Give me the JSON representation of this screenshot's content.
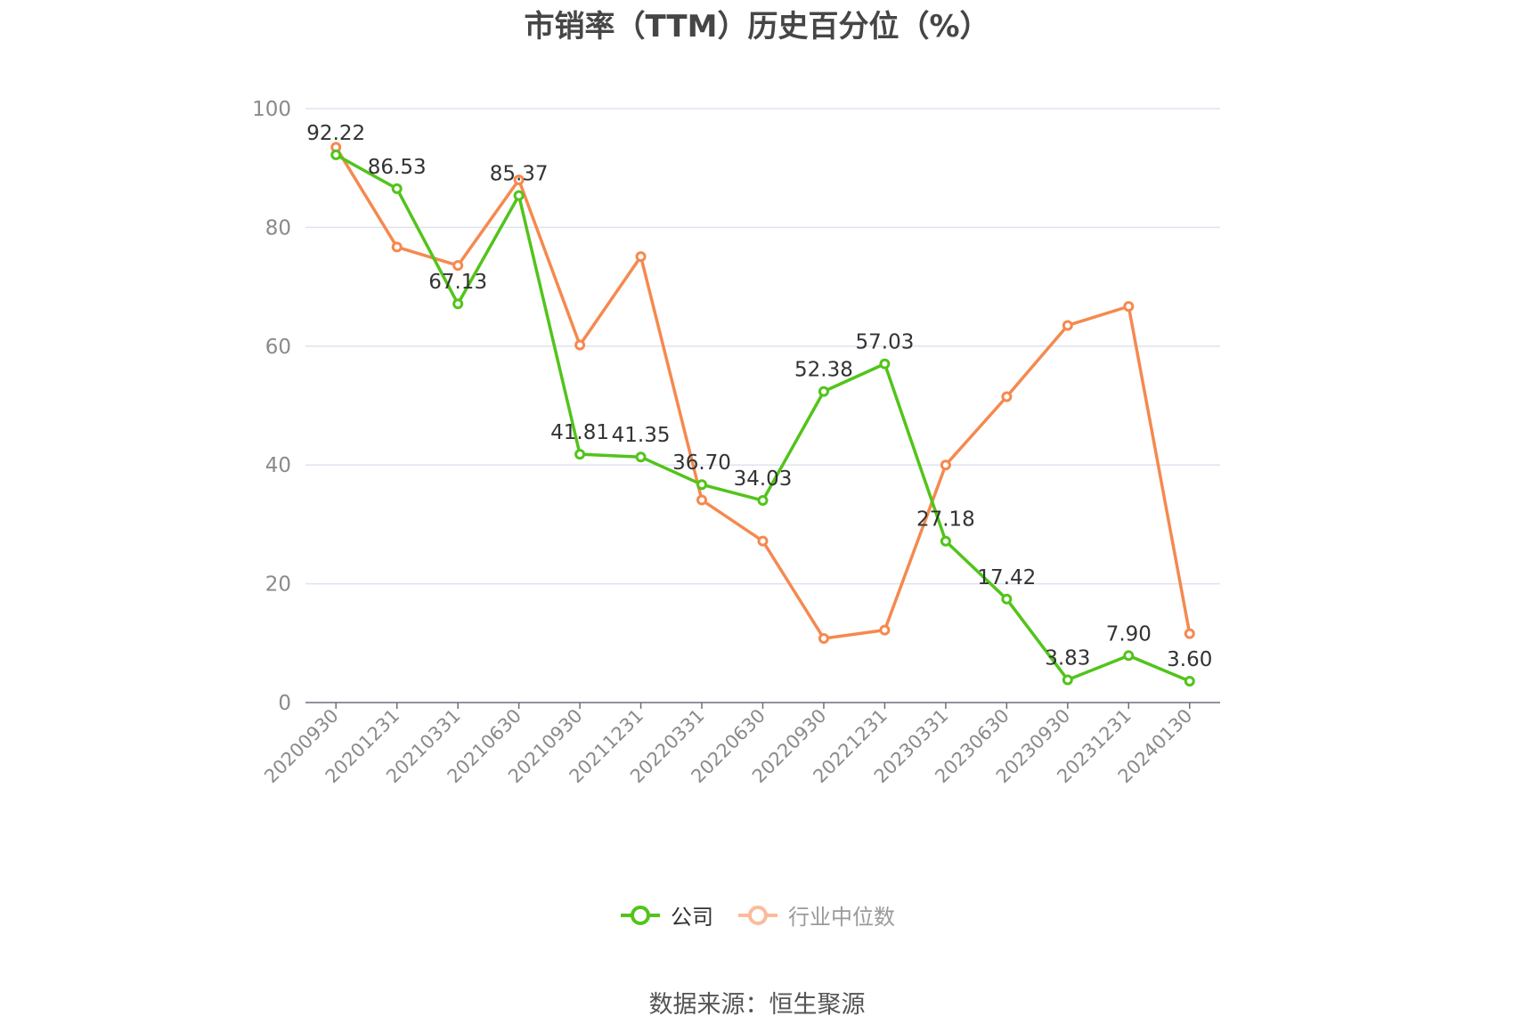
{
  "chart_data": {
    "type": "line",
    "title": "市销率（TTM）历史百分位（%）",
    "categories": [
      "20200930",
      "20201231",
      "20210331",
      "20210630",
      "20210930",
      "20211231",
      "20220331",
      "20220630",
      "20220930",
      "20221231",
      "20230331",
      "20230630",
      "20230930",
      "20231231",
      "20240130"
    ],
    "series": [
      {
        "name": "公司",
        "color": "#52c41a",
        "values": [
          92.22,
          86.53,
          67.13,
          85.37,
          41.81,
          41.35,
          36.7,
          34.03,
          52.38,
          57.03,
          27.18,
          17.42,
          3.83,
          7.9,
          3.6
        ],
        "labels": [
          "92.22",
          "86.53",
          "67.13",
          "85.37",
          "41.81",
          "41.35",
          "36.70",
          "34.03",
          "52.38",
          "57.03",
          "27.18",
          "17.42",
          "3.83",
          "7.90",
          "3.60"
        ]
      },
      {
        "name": "行业中位数",
        "color": "#f5894f",
        "values": [
          93.5,
          76.7,
          73.6,
          88.0,
          60.2,
          75.1,
          34.1,
          27.2,
          10.8,
          12.2,
          40.0,
          51.5,
          63.5,
          66.7,
          11.6
        ]
      }
    ],
    "ylim": [
      0,
      100
    ],
    "yticks": [
      0,
      20,
      40,
      60,
      80,
      100
    ],
    "xlabel": "",
    "ylabel": "",
    "grid": true,
    "legend_position": "bottom-center"
  },
  "source_note": "数据来源：恒生聚源"
}
